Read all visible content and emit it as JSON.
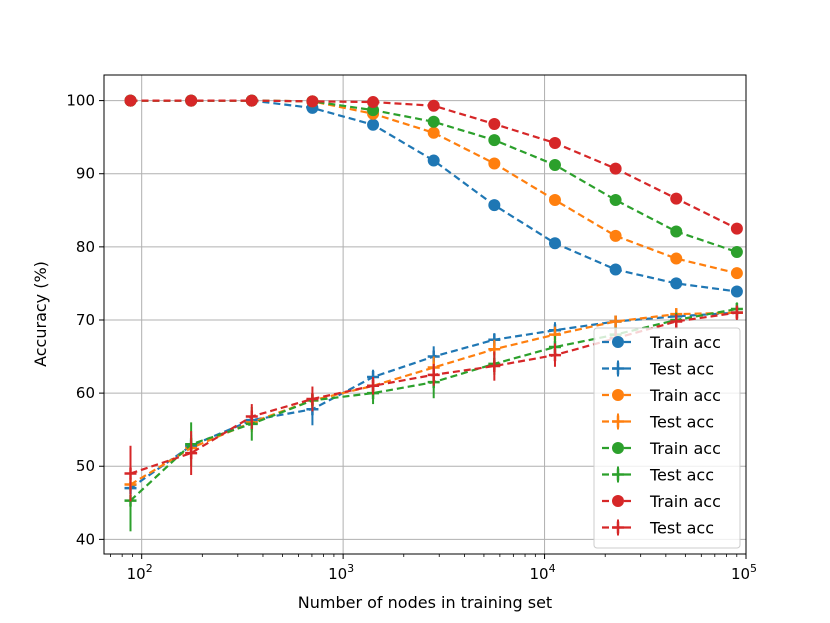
{
  "chart_data": {
    "type": "line",
    "xlabel": "Number of nodes in training set",
    "ylabel": "Accuracy (%)",
    "xscale": "log",
    "xlim": [
      65,
      100000
    ],
    "ylim": [
      38,
      103.5
    ],
    "grid": true,
    "legend_position": "lower-right",
    "y_ticks": [
      40,
      50,
      60,
      70,
      80,
      90,
      100
    ],
    "x_ticks": [
      {
        "value": 100,
        "base": "10",
        "exp": "2"
      },
      {
        "value": 1000,
        "base": "10",
        "exp": "3"
      },
      {
        "value": 10000,
        "base": "10",
        "exp": "4"
      },
      {
        "value": 100000,
        "base": "10",
        "exp": "5"
      }
    ],
    "x": [
      88,
      176,
      352,
      704,
      1408,
      2816,
      5632,
      11264,
      22528,
      45056,
      90112
    ],
    "series": [
      {
        "name": "Train acc",
        "color": "#1f77b4",
        "marker": "circle",
        "values": [
          100,
          100,
          100,
          99.0,
          96.7,
          91.8,
          85.7,
          80.5,
          76.9,
          75.0,
          73.9
        ]
      },
      {
        "name": "Test acc",
        "color": "#1f77b4",
        "marker": "plus",
        "values": [
          47.0,
          52.8,
          56.3,
          57.8,
          62.2,
          65.0,
          67.3,
          68.6,
          69.8,
          70.5,
          71.0
        ],
        "errors": [
          1.2,
          1.5,
          1.3,
          2.2,
          1.0,
          1.4,
          0.9,
          1.1,
          0.8,
          0.7,
          0.6
        ]
      },
      {
        "name": "Train acc",
        "color": "#ff7f0e",
        "marker": "circle",
        "values": [
          100,
          100,
          100,
          99.9,
          98.2,
          95.6,
          91.4,
          86.4,
          81.5,
          78.4,
          76.4
        ]
      },
      {
        "name": "Test acc",
        "color": "#ff7f0e",
        "marker": "plus",
        "values": [
          47.5,
          52.5,
          56.0,
          59.0,
          61.0,
          63.5,
          66.0,
          68.0,
          69.8,
          70.8,
          71.0
        ],
        "errors": [
          1.2,
          1.5,
          1.3,
          1.0,
          1.0,
          1.5,
          1.3,
          1.1,
          0.8,
          0.8,
          0.8
        ]
      },
      {
        "name": "Train acc",
        "color": "#2ca02c",
        "marker": "circle",
        "values": [
          100,
          100,
          100,
          99.9,
          98.7,
          97.1,
          94.6,
          91.2,
          86.4,
          82.1,
          79.3
        ]
      },
      {
        "name": "Test acc",
        "color": "#2ca02c",
        "marker": "plus",
        "values": [
          45.3,
          53.0,
          55.8,
          59.0,
          60.0,
          61.5,
          64.0,
          66.3,
          68.0,
          70.0,
          71.5
        ],
        "errors": [
          4.2,
          3.0,
          2.3,
          1.0,
          1.5,
          2.2,
          1.5,
          1.5,
          1.0,
          1.0,
          0.9
        ]
      },
      {
        "name": "Train acc",
        "color": "#d62728",
        "marker": "circle",
        "values": [
          100,
          100,
          100,
          99.9,
          99.8,
          99.3,
          96.8,
          94.2,
          90.7,
          86.6,
          82.5
        ]
      },
      {
        "name": "Test acc",
        "color": "#d62728",
        "marker": "plus",
        "values": [
          49.0,
          51.8,
          56.8,
          59.2,
          61.0,
          62.5,
          63.7,
          65.2,
          67.5,
          69.8,
          71.0
        ],
        "errors": [
          3.8,
          3.0,
          1.7,
          1.7,
          1.2,
          1.5,
          2.0,
          1.6,
          1.2,
          1.0,
          1.0
        ]
      }
    ]
  }
}
